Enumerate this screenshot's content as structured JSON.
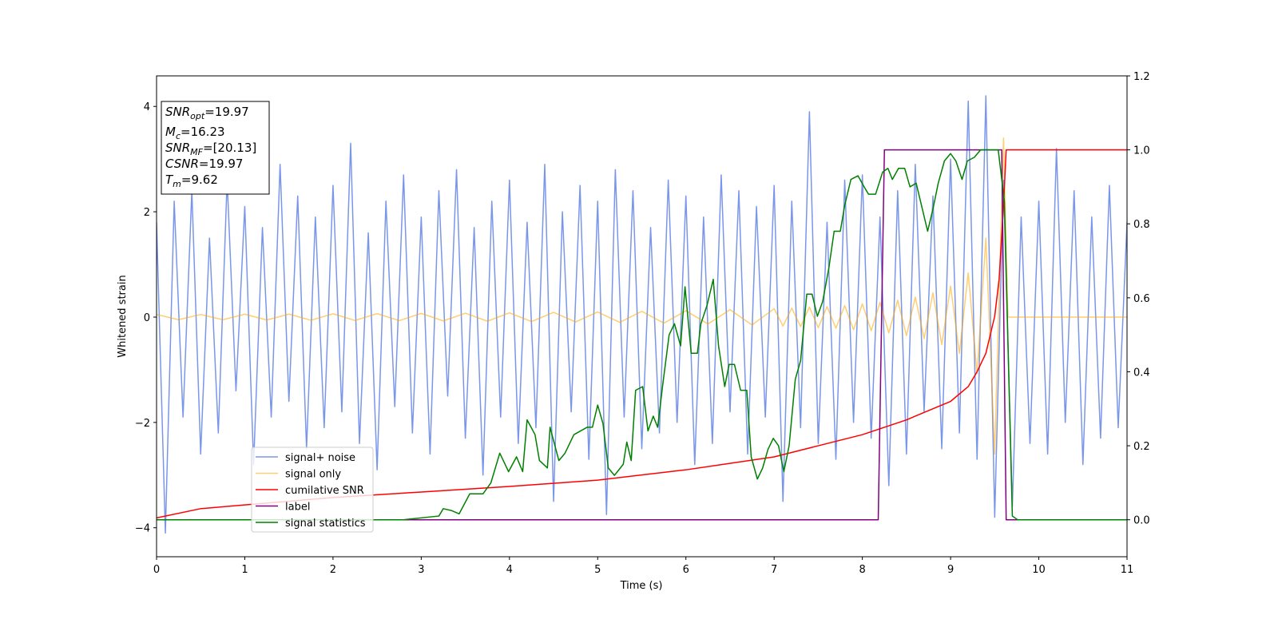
{
  "chart_data": {
    "type": "line",
    "xlabel": "Time (s)",
    "ylabel": "Whitened strain",
    "xlim": [
      0,
      11
    ],
    "xticks": [
      0,
      1,
      2,
      3,
      4,
      5,
      6,
      7,
      8,
      9,
      10,
      11
    ],
    "ylim": [
      -4.55,
      4.58
    ],
    "yticks": [
      {
        "value": -4,
        "label": "−4"
      },
      {
        "value": -2,
        "label": "−2"
      },
      0,
      2,
      4
    ],
    "y2lim": [
      -0.1,
      1.2
    ],
    "y2ticks": [
      {
        "value": 0,
        "label": "0.0"
      },
      {
        "value": 0.2,
        "label": "0.2"
      },
      {
        "value": 0.4,
        "label": "0.4"
      },
      {
        "value": 0.6,
        "label": "0.6"
      },
      {
        "value": 0.8,
        "label": "0.8"
      },
      {
        "value": 1.0,
        "label": "1.0"
      },
      {
        "value": 1.2,
        "label": "1.2"
      }
    ],
    "legend": "lower left",
    "annotations": [
      {
        "main": "SNR",
        "sub": "opt",
        "rest": "=19.97"
      },
      {
        "main": "M",
        "sub": "c",
        "rest": "=16.23"
      },
      {
        "main": "SNR",
        "sub": "MF",
        "rest": "=[20.13]"
      },
      {
        "main": "CSNR",
        "sub": "",
        "rest": "=19.97"
      },
      {
        "main": "T",
        "sub": "m",
        "rest": "=9.62"
      }
    ],
    "series": [
      {
        "name": "signal+ noise",
        "color": "#4169e1",
        "opacity": 0.7,
        "axis": "y",
        "x": [
          0,
          0.1,
          0.2,
          0.3,
          0.4,
          0.5,
          0.6,
          0.7,
          0.8,
          0.9,
          1,
          1.1,
          1.2,
          1.3,
          1.4,
          1.5,
          1.6,
          1.7,
          1.8,
          1.9,
          2,
          2.1,
          2.2,
          2.3,
          2.4,
          2.5,
          2.6,
          2.7,
          2.8,
          2.9,
          3,
          3.1,
          3.2,
          3.3,
          3.4,
          3.5,
          3.6,
          3.7,
          3.8,
          3.9,
          4,
          4.1,
          4.2,
          4.3,
          4.4,
          4.5,
          4.6,
          4.7,
          4.8,
          4.9,
          5,
          5.1,
          5.2,
          5.3,
          5.4,
          5.5,
          5.6,
          5.7,
          5.8,
          5.9,
          6,
          6.1,
          6.2,
          6.3,
          6.4,
          6.5,
          6.6,
          6.7,
          6.8,
          6.9,
          7,
          7.1,
          7.2,
          7.3,
          7.4,
          7.5,
          7.6,
          7.7,
          7.8,
          7.9,
          8,
          8.1,
          8.2,
          8.3,
          8.4,
          8.5,
          8.6,
          8.7,
          8.8,
          8.9,
          9,
          9.1,
          9.2,
          9.3,
          9.4,
          9.5,
          9.6,
          9.7,
          9.8,
          9.9,
          10,
          10.1,
          10.2,
          10.3,
          10.4,
          10.5,
          10.6,
          10.7,
          10.8,
          10.9,
          11
        ],
        "values": [
          1.8,
          -4.1,
          2.2,
          -1.9,
          2.4,
          -2.6,
          1.5,
          -2.2,
          2.6,
          -1.4,
          2.1,
          -2.8,
          1.7,
          -1.9,
          2.9,
          -1.6,
          2.3,
          -2.5,
          1.9,
          -2.1,
          2.5,
          -1.8,
          3.3,
          -2.4,
          1.6,
          -2.9,
          2.2,
          -1.7,
          2.7,
          -2.2,
          1.9,
          -2.6,
          2.4,
          -1.5,
          2.8,
          -2.3,
          1.7,
          -3.0,
          2.2,
          -1.9,
          2.6,
          -2.4,
          1.8,
          -2.1,
          2.9,
          -3.5,
          2.0,
          -1.8,
          2.5,
          -2.7,
          2.2,
          -3.75,
          2.8,
          -1.9,
          2.4,
          -2.5,
          1.7,
          -2.2,
          2.6,
          -2.0,
          2.3,
          -2.8,
          1.9,
          -2.4,
          2.7,
          -1.8,
          2.4,
          -2.6,
          2.1,
          -1.9,
          2.5,
          -3.5,
          2.2,
          -2.1,
          3.9,
          -2.4,
          1.8,
          -2.7,
          2.6,
          -2.0,
          2.7,
          -2.3,
          1.9,
          -3.2,
          2.4,
          -2.6,
          2.9,
          -1.8,
          2.3,
          -2.5,
          3.0,
          -2.2,
          4.1,
          -2.7,
          4.2,
          -3.8,
          2.6,
          -3.6,
          1.9,
          -2.4,
          2.2,
          -2.6,
          3.2,
          -2.0,
          2.4,
          -2.8,
          1.9,
          -2.3,
          2.5,
          -2.1,
          1.8
        ]
      },
      {
        "name": "signal only",
        "color": "#ffa500",
        "opacity": 0.55,
        "axis": "y",
        "x": [
          0,
          0.25,
          0.5,
          0.75,
          1,
          1.25,
          1.5,
          1.75,
          2,
          2.25,
          2.5,
          2.75,
          3,
          3.25,
          3.5,
          3.75,
          4,
          4.25,
          4.5,
          4.75,
          5,
          5.25,
          5.5,
          5.75,
          6,
          6.25,
          6.5,
          6.75,
          7,
          7.1,
          7.2,
          7.3,
          7.4,
          7.5,
          7.6,
          7.7,
          7.8,
          7.9,
          8,
          8.1,
          8.2,
          8.3,
          8.4,
          8.5,
          8.6,
          8.7,
          8.8,
          8.9,
          9,
          9.1,
          9.2,
          9.3,
          9.4,
          9.5,
          9.6,
          9.65,
          11
        ],
        "values": [
          0.05,
          -0.05,
          0.05,
          -0.05,
          0.055,
          -0.055,
          0.057,
          -0.06,
          0.062,
          -0.064,
          0.066,
          -0.068,
          0.07,
          -0.072,
          0.075,
          -0.078,
          0.081,
          -0.085,
          0.09,
          -0.093,
          0.097,
          -0.1,
          0.11,
          -0.115,
          0.12,
          -0.13,
          0.14,
          -0.15,
          0.16,
          -0.17,
          0.17,
          -0.18,
          0.19,
          -0.2,
          0.2,
          -0.21,
          0.22,
          -0.24,
          0.25,
          -0.26,
          0.28,
          -0.3,
          0.32,
          -0.35,
          0.38,
          -0.41,
          0.46,
          -0.52,
          0.59,
          -0.69,
          0.84,
          -1.07,
          1.5,
          -2.6,
          3.4,
          0,
          0
        ]
      },
      {
        "name": "cumilative SNR",
        "color": "#ff0000",
        "opacity": 1,
        "axis": "y2",
        "x": [
          0,
          0.5,
          1,
          2,
          3,
          4,
          5,
          6,
          7,
          7.5,
          8,
          8.5,
          9,
          9.2,
          9.3,
          9.4,
          9.5,
          9.55,
          9.6,
          9.63,
          11
        ],
        "values": [
          0.005,
          0.03,
          0.04,
          0.06,
          0.075,
          0.09,
          0.107,
          0.135,
          0.17,
          0.2,
          0.23,
          0.27,
          0.32,
          0.36,
          0.4,
          0.45,
          0.55,
          0.65,
          0.85,
          1.0,
          1.0
        ]
      },
      {
        "name": "label",
        "color": "#800080",
        "opacity": 1,
        "axis": "y2",
        "x": [
          0,
          8.18,
          8.25,
          9.58,
          9.63,
          11
        ],
        "values": [
          0,
          0,
          1,
          1,
          0,
          0
        ]
      },
      {
        "name": "signal statistics",
        "color": "#008000",
        "opacity": 1,
        "axis": "y2",
        "x": [
          0,
          2.8,
          3.2,
          3.25,
          3.34,
          3.43,
          3.55,
          3.7,
          3.79,
          3.89,
          3.99,
          4.08,
          4.15,
          4.2,
          4.29,
          4.34,
          4.43,
          4.46,
          4.56,
          4.63,
          4.73,
          4.88,
          4.94,
          5.0,
          5.06,
          5.12,
          5.19,
          5.29,
          5.33,
          5.38,
          5.43,
          5.51,
          5.57,
          5.63,
          5.68,
          5.74,
          5.81,
          5.87,
          5.94,
          5.99,
          6.06,
          6.13,
          6.17,
          6.24,
          6.31,
          6.37,
          6.44,
          6.49,
          6.55,
          6.62,
          6.69,
          6.74,
          6.81,
          6.87,
          6.93,
          6.99,
          7.05,
          7.11,
          7.17,
          7.24,
          7.3,
          7.37,
          7.43,
          7.49,
          7.55,
          7.62,
          7.68,
          7.75,
          7.8,
          7.87,
          7.95,
          8.02,
          8.07,
          8.15,
          8.23,
          8.29,
          8.34,
          8.41,
          8.48,
          8.54,
          8.61,
          8.68,
          8.74,
          8.8,
          8.86,
          8.93,
          9.0,
          9.06,
          9.13,
          9.19,
          9.27,
          9.34,
          9.54,
          9.61,
          9.7,
          9.76,
          11
        ],
        "values": [
          0,
          0,
          0.01,
          0.03,
          0.025,
          0.016,
          0.07,
          0.07,
          0.1,
          0.18,
          0.13,
          0.17,
          0.13,
          0.27,
          0.23,
          0.16,
          0.14,
          0.25,
          0.16,
          0.18,
          0.23,
          0.25,
          0.25,
          0.31,
          0.26,
          0.14,
          0.12,
          0.15,
          0.21,
          0.16,
          0.35,
          0.36,
          0.24,
          0.28,
          0.25,
          0.37,
          0.5,
          0.53,
          0.47,
          0.63,
          0.45,
          0.45,
          0.53,
          0.58,
          0.65,
          0.47,
          0.36,
          0.42,
          0.42,
          0.35,
          0.35,
          0.17,
          0.11,
          0.14,
          0.19,
          0.22,
          0.2,
          0.13,
          0.2,
          0.38,
          0.43,
          0.61,
          0.61,
          0.55,
          0.59,
          0.68,
          0.78,
          0.78,
          0.85,
          0.92,
          0.93,
          0.9,
          0.88,
          0.88,
          0.94,
          0.95,
          0.92,
          0.95,
          0.95,
          0.9,
          0.91,
          0.84,
          0.78,
          0.84,
          0.91,
          0.97,
          0.99,
          0.97,
          0.92,
          0.97,
          0.98,
          1.0,
          1.0,
          0.86,
          0.01,
          0,
          0
        ]
      }
    ]
  }
}
